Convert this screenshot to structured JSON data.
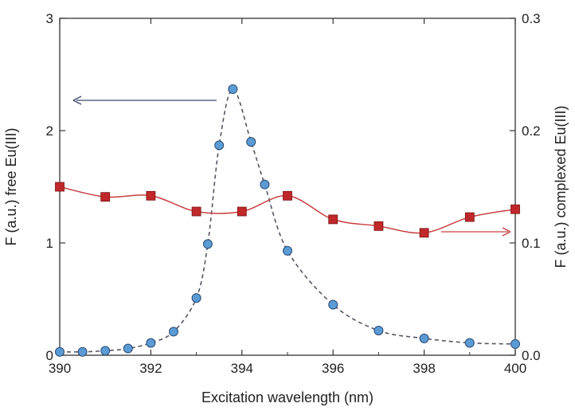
{
  "chart_data": {
    "type": "line",
    "xlabel": "Excitation wavelength (nm)",
    "ylabel_left": "F (a.u.) free Eu(III)",
    "ylabel_right": "F (a.u.) complexed Eu(III)",
    "xlim": [
      390,
      400
    ],
    "ylim_left": [
      0,
      3
    ],
    "ylim_right": [
      0,
      0.3
    ],
    "x_ticks": [
      "390",
      "392",
      "394",
      "396",
      "398",
      "400"
    ],
    "y_left_ticks": [
      "0",
      "1",
      "2",
      "3"
    ],
    "y_right_ticks": [
      "0.0",
      "0.1",
      "0.2",
      "0.3"
    ],
    "grid": false,
    "legend": "none",
    "series": [
      {
        "axis": "left",
        "marker": "circle",
        "line": "dashed",
        "color": "#5b9bd5",
        "line_color": "#555566",
        "x": [
          390,
          390.5,
          391,
          391.5,
          392,
          392.5,
          393,
          393.25,
          393.5,
          393.8,
          394.2,
          394.5,
          395,
          396,
          397,
          398,
          399,
          400
        ],
        "y": [
          0.03,
          0.03,
          0.04,
          0.06,
          0.11,
          0.21,
          0.51,
          0.99,
          1.87,
          2.37,
          1.9,
          1.52,
          0.93,
          0.45,
          0.22,
          0.15,
          0.11,
          0.1
        ]
      },
      {
        "axis": "right",
        "marker": "square",
        "line": "solid",
        "color": "#c0282a",
        "line_color": "#c84040",
        "x": [
          390,
          391,
          392,
          393,
          394,
          395,
          396,
          397,
          398,
          399,
          400
        ],
        "y": [
          0.15,
          0.141,
          0.142,
          0.128,
          0.128,
          0.142,
          0.121,
          0.115,
          0.109,
          0.123,
          0.13
        ]
      }
    ],
    "annotations": [
      {
        "type": "arrow",
        "direction": "left",
        "points_to": "left-axis",
        "color": "#3a4a6a"
      },
      {
        "type": "arrow",
        "direction": "right",
        "points_to": "right-axis",
        "color": "#c84040"
      }
    ]
  }
}
